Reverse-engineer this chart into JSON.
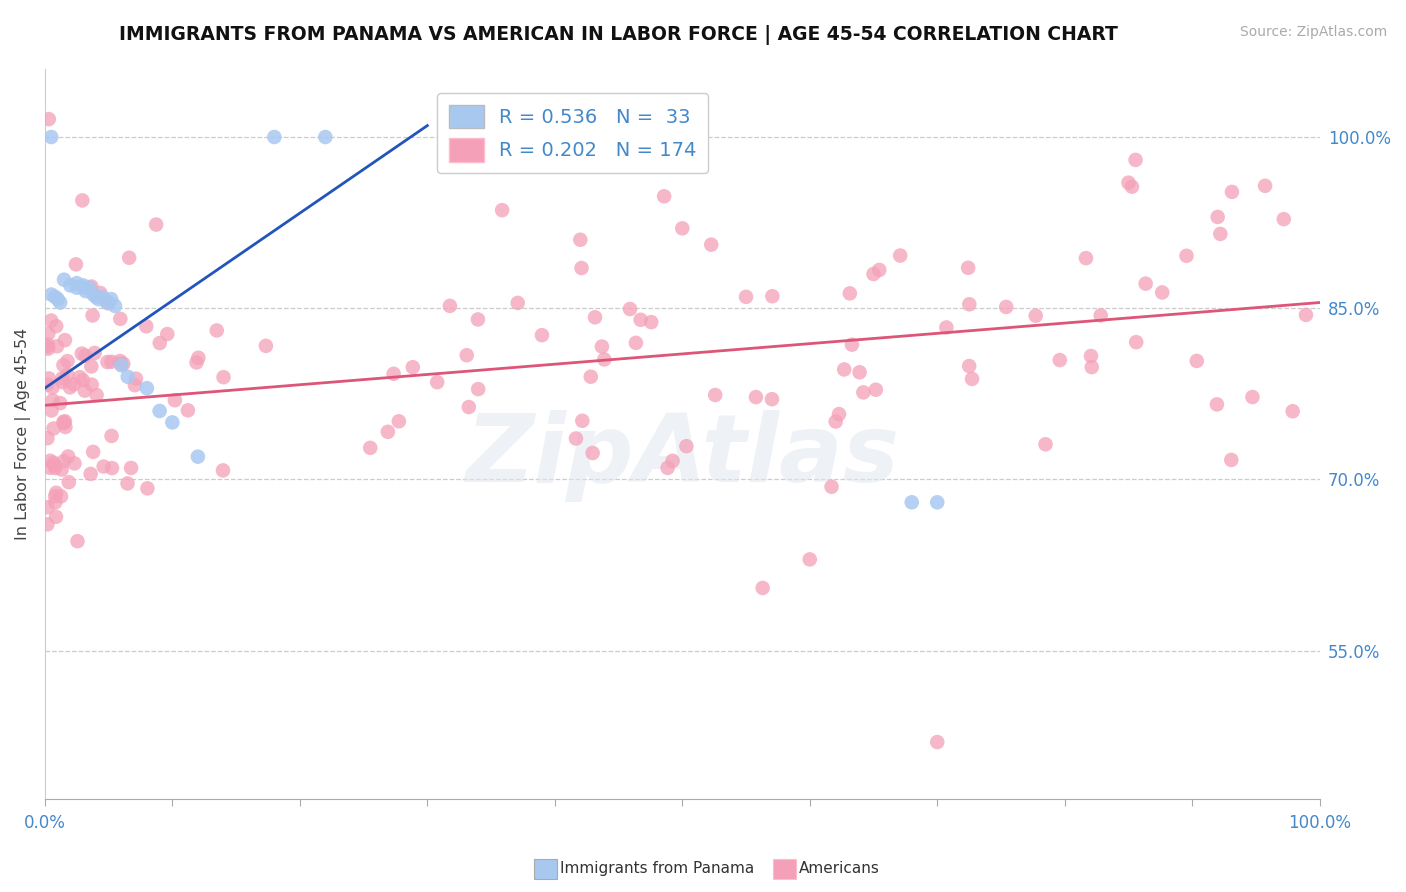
{
  "title": "IMMIGRANTS FROM PANAMA VS AMERICAN IN LABOR FORCE | AGE 45-54 CORRELATION CHART",
  "source": "Source: ZipAtlas.com",
  "ylabel": "In Labor Force | Age 45-54",
  "xlim": [
    0.0,
    1.0
  ],
  "ylim": [
    0.42,
    1.06
  ],
  "blue_R": 0.536,
  "blue_N": 33,
  "pink_R": 0.202,
  "pink_N": 174,
  "blue_color": "#a8c8f0",
  "pink_color": "#f4a0b8",
  "blue_line_color": "#2255bb",
  "pink_line_color": "#dd5577",
  "watermark": "ZipAtlas",
  "legend_label_blue": "Immigrants from Panama",
  "legend_label_pink": "Americans",
  "right_yticks": [
    0.55,
    0.7,
    0.85,
    1.0
  ],
  "right_yticklabels": [
    "55.0%",
    "70.0%",
    "85.0%",
    "100.0%"
  ],
  "grid_color": "#cccccc",
  "background_color": "#ffffff",
  "label_color": "#4488cc",
  "title_color": "#111111",
  "xticks": [
    0.0,
    0.1,
    0.2,
    0.3,
    0.4,
    0.5,
    0.6,
    0.7,
    0.8,
    0.9,
    1.0
  ],
  "blue_trend_x": [
    0.0,
    0.3
  ],
  "blue_trend_y": [
    0.78,
    1.01
  ],
  "pink_trend_x": [
    0.0,
    1.0
  ],
  "pink_trend_y": [
    0.765,
    0.855
  ]
}
